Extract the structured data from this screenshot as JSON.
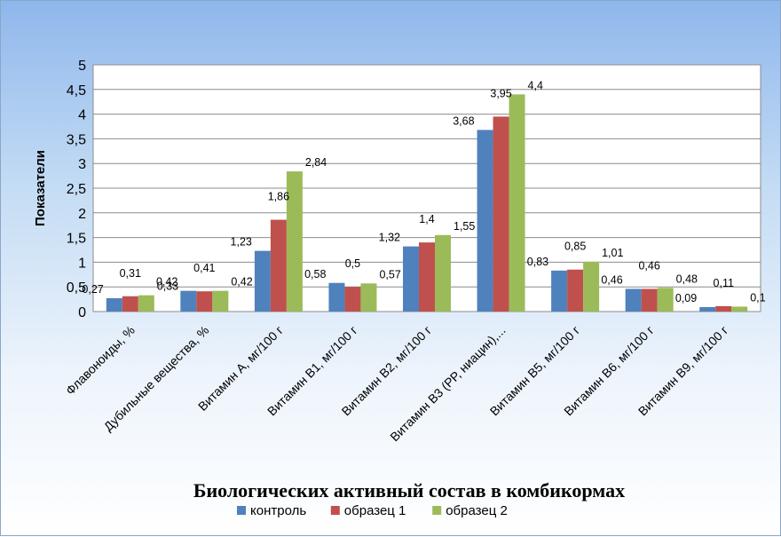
{
  "chart_data": {
    "type": "bar",
    "title": "",
    "xlabel": "Биологических активный состав в комбикормах",
    "ylabel": "Показатели",
    "ylim": [
      0,
      5
    ],
    "yticks": [
      "0",
      "0,5",
      "1",
      "1,5",
      "2",
      "2,5",
      "3",
      "3,5",
      "4",
      "4,5",
      "5"
    ],
    "grid": true,
    "legend_position": "bottom",
    "categories": [
      "Флавоноиды, %",
      "Дубильные вещества, %",
      "Витамин А, мг/100 г",
      "Витамин В1, мг/100 г",
      "Витамин В2, мг/100 г",
      "Витамин В3 (РР, ниацин),...",
      "Витамин В5, мг/100 г",
      "Витамин В6, мг/100 г",
      "Витамин В9, мг/100 г"
    ],
    "series": [
      {
        "name": "контроль",
        "color": "#4f81bd",
        "values": [
          0.27,
          0.42,
          1.23,
          0.58,
          1.32,
          3.68,
          0.83,
          0.46,
          0.09
        ],
        "labels": [
          "0,27",
          "0,42",
          "1,23",
          "0,58",
          "1,32",
          "3,68",
          "0,83",
          "0,46",
          "0,09"
        ]
      },
      {
        "name": "образец 1",
        "color": "#c0504d",
        "values": [
          0.31,
          0.41,
          1.86,
          0.5,
          1.4,
          3.95,
          0.85,
          0.46,
          0.11
        ],
        "labels": [
          "0,31",
          "0,41",
          "1,86",
          "0,5",
          "1,4",
          "3,95",
          "0,85",
          "0,46",
          "0,11"
        ]
      },
      {
        "name": "образец 2",
        "color": "#9bbb59",
        "values": [
          0.33,
          0.42,
          2.84,
          0.57,
          1.55,
          4.4,
          1.01,
          0.48,
          0.1
        ],
        "labels": [
          "0,33",
          "0,42",
          "2,84",
          "0,57",
          "1,55",
          "4,4",
          "1,01",
          "0,48",
          "0,1"
        ]
      }
    ]
  }
}
